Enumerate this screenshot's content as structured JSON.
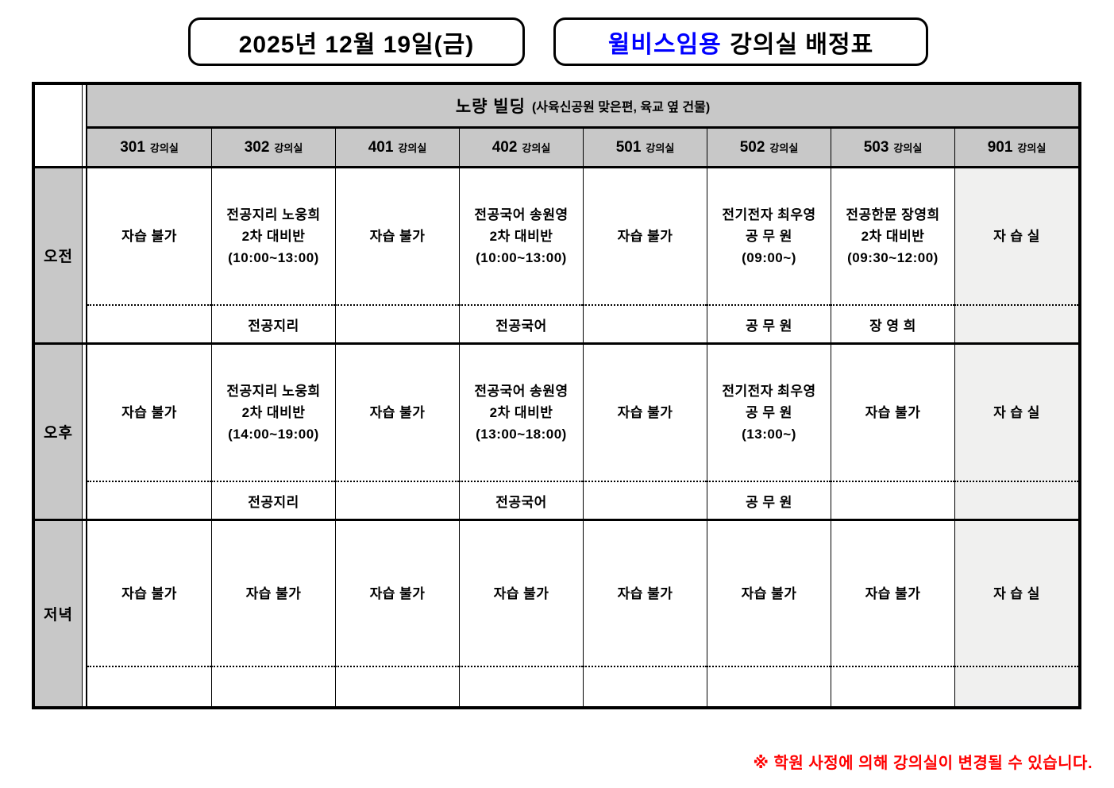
{
  "header": {
    "date_title": "2025년 12월 19일(금)",
    "brand": "윌비스임용",
    "title_rest": "강의실 배정표"
  },
  "schedule": {
    "building": "노량 빌딩",
    "building_note": "(사육신공원 맞은편, 육교 옆 건물)",
    "room_suffix": "강의실",
    "rooms": [
      "301",
      "302",
      "401",
      "402",
      "501",
      "502",
      "503",
      "901"
    ],
    "blocks": [
      {
        "time": "오전",
        "cells": [
          {
            "main": "자습 불가",
            "sub": ""
          },
          {
            "main": "전공지리 노웅희\n2차 대비반\n(10:00~13:00)",
            "sub": "전공지리"
          },
          {
            "main": "자습 불가",
            "sub": ""
          },
          {
            "main": "전공국어 송원영\n2차 대비반\n(10:00~13:00)",
            "sub": "전공국어"
          },
          {
            "main": "자습 불가",
            "sub": ""
          },
          {
            "main": "전기전자 최우영\n공 무 원\n(09:00~)",
            "sub": "공 무 원"
          },
          {
            "main": "전공한문 장영희\n2차 대비반\n(09:30~12:00)",
            "sub": "장 영 희"
          },
          {
            "main": "자 습 실",
            "sub": ""
          }
        ]
      },
      {
        "time": "오후",
        "cells": [
          {
            "main": "자습 불가",
            "sub": ""
          },
          {
            "main": "전공지리 노웅희\n2차 대비반\n(14:00~19:00)",
            "sub": "전공지리"
          },
          {
            "main": "자습 불가",
            "sub": ""
          },
          {
            "main": "전공국어 송원영\n2차 대비반\n(13:00~18:00)",
            "sub": "전공국어"
          },
          {
            "main": "자습 불가",
            "sub": ""
          },
          {
            "main": "전기전자 최우영\n공 무 원\n(13:00~)",
            "sub": "공 무 원"
          },
          {
            "main": "자습 불가",
            "sub": ""
          },
          {
            "main": "자 습 실",
            "sub": ""
          }
        ]
      },
      {
        "time": "저녁",
        "cells": [
          {
            "main": "자습 불가",
            "sub": ""
          },
          {
            "main": "자습 불가",
            "sub": ""
          },
          {
            "main": "자습 불가",
            "sub": ""
          },
          {
            "main": "자습 불가",
            "sub": ""
          },
          {
            "main": "자습 불가",
            "sub": ""
          },
          {
            "main": "자습 불가",
            "sub": ""
          },
          {
            "main": "자습 불가",
            "sub": ""
          },
          {
            "main": "자 습 실",
            "sub": ""
          }
        ]
      }
    ]
  },
  "footer": {
    "note": "※ 학원 사정에 의해 강의실이 변경될 수 있습니다."
  },
  "colors": {
    "brand_blue": "#0000ff",
    "note_red": "#ff0000",
    "header_gray": "#c8c8c8",
    "study_room_gray": "#f0f0ef"
  }
}
